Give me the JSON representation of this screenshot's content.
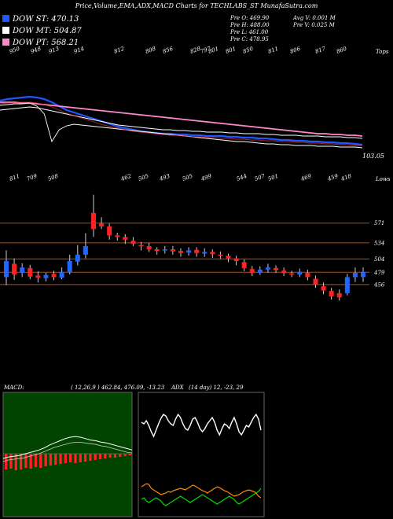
{
  "header": {
    "title": "Price,Volume,EMA,ADX,MACD Charts for TECHLABS_ST MunafaSutra.com"
  },
  "legend": [
    {
      "label": "DOW ST: 470.13",
      "color": "#2255ff"
    },
    {
      "label": "DOW MT: 504.87",
      "color": "#ffffff"
    },
    {
      "label": "DOW PT: 568.21",
      "color": "#ff88cc"
    }
  ],
  "stats": {
    "prev_open": "Pre   O: 469.90",
    "prev_high": "Pre   H: 488.00",
    "prev_low": "Pre   L: 461.00",
    "prev_close": "Pre   C: 478.95",
    "avg_volume": "Avg V: 0.001 M",
    "prev_volume": "Pre   V: 0.025 M"
  },
  "upper_panel": {
    "top_labels": [
      "Tops",
      "950",
      "948",
      "913",
      "914",
      "812",
      "808",
      "856",
      "828",
      "797",
      "801",
      "801",
      "850",
      "811",
      "806",
      "817",
      "860"
    ],
    "bottom_labels": [
      "Lows",
      "811",
      "709",
      "508",
      "462",
      "505",
      "493",
      "505",
      "499",
      "544",
      "507",
      "501",
      "469",
      "459",
      "418"
    ],
    "last_value": "103.05"
  },
  "price_panel": {
    "levels": [
      "571",
      "534",
      "504",
      "479",
      "456"
    ]
  },
  "indicators": {
    "macd_label": "MACD:",
    "macd_values": "( 12,26,9 ) 462.84, 476.09, -13.23",
    "adx_label": "ADX",
    "adx_values": "(14  day) 12, -23, 29"
  },
  "chart_data": [
    {
      "type": "line",
      "panel": "ema",
      "x": [
        1,
        2,
        3,
        4,
        5,
        6,
        7,
        8,
        9,
        10,
        11,
        12,
        13,
        14,
        15,
        16,
        17,
        18,
        19,
        20,
        21,
        22,
        23,
        24,
        25,
        26,
        27,
        28,
        29,
        30,
        31,
        32,
        33,
        34,
        35,
        36,
        37,
        38,
        39,
        40,
        41,
        42,
        43,
        44,
        45,
        46,
        47,
        48,
        49,
        50
      ],
      "series": [
        {
          "name": "",
          "color": "#2255ff",
          "values": [
            128,
            126,
            125,
            124,
            123,
            124,
            126,
            130,
            135,
            140,
            143,
            146,
            149,
            152,
            155,
            158,
            161,
            163,
            165,
            167,
            168,
            169,
            170,
            170,
            171,
            171,
            172,
            172,
            173,
            173,
            173,
            174,
            174,
            175,
            175,
            176,
            176,
            177,
            178,
            178,
            179,
            179,
            180,
            180,
            181,
            181,
            182,
            182,
            183,
            184
          ]
        },
        {
          "name": "",
          "color": "#ffffff",
          "values": [
            140,
            139,
            138,
            137,
            136,
            137,
            139,
            141,
            143,
            145,
            147,
            149,
            151,
            153,
            155,
            157,
            159,
            160,
            161,
            162,
            163,
            164,
            165,
            165,
            166,
            166,
            167,
            167,
            168,
            168,
            168,
            169,
            169,
            170,
            170,
            170,
            171,
            171,
            172,
            172,
            172,
            173,
            173,
            173,
            174,
            174,
            174,
            175,
            175,
            176
          ]
        },
        {
          "name": "",
          "color": "#ff88cc",
          "values": [
            130,
            130,
            130,
            131,
            131,
            132,
            133,
            134,
            135,
            136,
            137,
            138,
            139,
            140,
            141,
            142,
            143,
            144,
            145,
            146,
            147,
            148,
            149,
            150,
            151,
            152,
            153,
            154,
            155,
            156,
            157,
            158,
            159,
            160,
            161,
            162,
            163,
            164,
            165,
            166,
            167,
            168,
            169,
            170,
            170,
            171,
            171,
            172,
            172,
            173
          ]
        },
        {
          "name": "",
          "color": "#ffffff",
          "values": [
            134,
            133,
            132,
            132,
            131,
            135,
            145,
            180,
            165,
            160,
            158,
            159,
            160,
            161,
            162,
            163,
            164,
            165,
            166,
            167,
            168,
            169,
            170,
            171,
            172,
            173,
            174,
            175,
            176,
            177,
            178,
            179,
            180,
            180,
            181,
            182,
            183,
            183,
            184,
            184,
            185,
            185,
            185,
            186,
            186,
            186,
            187,
            187,
            187,
            188
          ]
        },
        {
          "name": "",
          "color": "#ff3333",
          "values": [
            132,
            131,
            131,
            130,
            130,
            131,
            133,
            136,
            140,
            144,
            147,
            150,
            153,
            156,
            159,
            161,
            163,
            165,
            167,
            168,
            169,
            170,
            171,
            172,
            172,
            173,
            174,
            174,
            175,
            175,
            176,
            176,
            177,
            177,
            178,
            178,
            179,
            179,
            180,
            180,
            181,
            181,
            182,
            182,
            183,
            183,
            184,
            184,
            185,
            185
          ]
        }
      ]
    },
    {
      "type": "bar",
      "panel": "candles",
      "candles": [
        [
          470,
          500,
          520,
          455,
          "up"
        ],
        [
          495,
          475,
          505,
          465,
          "down"
        ],
        [
          478,
          488,
          496,
          470,
          "up"
        ],
        [
          487,
          471,
          493,
          466,
          "down"
        ],
        [
          473,
          469,
          481,
          460,
          "down"
        ],
        [
          468,
          474,
          478,
          462,
          "up"
        ],
        [
          476,
          470,
          482,
          464,
          "down"
        ],
        [
          469,
          480,
          488,
          466,
          "up"
        ],
        [
          479,
          500,
          512,
          475,
          "up"
        ],
        [
          499,
          512,
          530,
          492,
          "up"
        ],
        [
          512,
          528,
          552,
          505,
          "up"
        ],
        [
          560,
          590,
          624,
          545,
          "down"
        ],
        [
          565,
          570,
          582,
          560,
          "down"
        ],
        [
          565,
          548,
          570,
          540,
          "down"
        ],
        [
          548,
          545,
          553,
          538,
          "down"
        ],
        [
          545,
          540,
          550,
          532,
          "down"
        ],
        [
          538,
          532,
          545,
          528,
          "down"
        ],
        [
          530,
          528,
          536,
          520,
          "down"
        ],
        [
          528,
          522,
          534,
          517,
          "down"
        ],
        [
          522,
          519,
          526,
          512,
          "down"
        ],
        [
          520,
          522,
          528,
          514,
          "up"
        ],
        [
          522,
          518,
          528,
          512,
          "down"
        ],
        [
          519,
          515,
          524,
          508,
          "down"
        ],
        [
          516,
          520,
          526,
          510,
          "up"
        ],
        [
          521,
          515,
          526,
          508,
          "down"
        ],
        [
          514,
          517,
          524,
          508,
          "up"
        ],
        [
          517,
          513,
          522,
          506,
          "down"
        ],
        [
          512,
          510,
          518,
          504,
          "down"
        ],
        [
          510,
          505,
          514,
          498,
          "down"
        ],
        [
          505,
          500,
          510,
          492,
          "down"
        ],
        [
          498,
          487,
          503,
          481,
          "down"
        ],
        [
          485,
          478,
          491,
          472,
          "down"
        ],
        [
          478,
          484,
          490,
          474,
          "up"
        ],
        [
          484,
          488,
          495,
          478,
          "up"
        ],
        [
          487,
          483,
          492,
          478,
          "down"
        ],
        [
          482,
          478,
          488,
          472,
          "down"
        ],
        [
          477,
          475,
          482,
          470,
          "down"
        ],
        [
          475,
          480,
          486,
          470,
          "up"
        ],
        [
          478,
          470,
          484,
          464,
          "down"
        ],
        [
          467,
          456,
          473,
          450,
          "down"
        ],
        [
          453,
          445,
          460,
          438,
          "down"
        ],
        [
          444,
          434,
          450,
          428,
          "down"
        ],
        [
          432,
          440,
          447,
          426,
          "down"
        ],
        [
          440,
          470,
          476,
          436,
          "up"
        ],
        [
          470,
          478,
          488,
          461,
          "up"
        ],
        [
          470,
          480,
          488,
          461,
          "up"
        ]
      ],
      "ylim": [
        400,
        650
      ]
    },
    {
      "type": "bar",
      "panel": "macd",
      "values": [
        20,
        19,
        21,
        20,
        18,
        19,
        17,
        18,
        16,
        15,
        14,
        13,
        12,
        11,
        12,
        11,
        10,
        9,
        8,
        7,
        6,
        5,
        5,
        4,
        3,
        2
      ],
      "line_a": [
        60,
        62,
        63,
        64,
        66,
        68,
        70,
        72,
        75,
        79,
        82,
        85,
        88,
        90,
        91,
        90,
        88,
        86,
        85,
        83,
        82,
        80,
        78,
        76,
        74,
        72
      ],
      "line_b": [
        58,
        60,
        61,
        62,
        63,
        65,
        67,
        69,
        72,
        75,
        78,
        80,
        82,
        84,
        85,
        85,
        84,
        83,
        82,
        80,
        79,
        77,
        75,
        73,
        71,
        70
      ],
      "ylim": [
        0,
        160
      ]
    },
    {
      "type": "line",
      "panel": "adx",
      "x": [
        1,
        2,
        3,
        4,
        5,
        6,
        7,
        8,
        9,
        10,
        11,
        12,
        13,
        14,
        15,
        16,
        17,
        18,
        19,
        20,
        21,
        22,
        23,
        24,
        25,
        26,
        27,
        28,
        29,
        30,
        31,
        32,
        33,
        34,
        35,
        36,
        37,
        38,
        39,
        40,
        41,
        42,
        43,
        44,
        45,
        46,
        47,
        48,
        49,
        50
      ],
      "series": [
        {
          "name": "",
          "color": "#ffffff",
          "values": [
            120,
            118,
            122,
            116,
            108,
            102,
            110,
            118,
            125,
            130,
            128,
            122,
            118,
            116,
            124,
            130,
            126,
            118,
            112,
            110,
            116,
            124,
            126,
            120,
            112,
            108,
            112,
            118,
            122,
            126,
            120,
            110,
            104,
            112,
            118,
            116,
            112,
            120,
            126,
            118,
            108,
            104,
            110,
            116,
            114,
            120,
            126,
            130,
            124,
            110
          ]
        },
        {
          "name": "",
          "color": "#ff8800",
          "values": [
            38,
            40,
            42,
            41,
            36,
            34,
            32,
            30,
            28,
            29,
            30,
            32,
            31,
            33,
            34,
            35,
            36,
            35,
            34,
            36,
            38,
            40,
            39,
            37,
            35,
            33,
            32,
            30,
            32,
            34,
            36,
            38,
            37,
            35,
            33,
            32,
            30,
            28,
            26,
            27,
            28,
            30,
            32,
            33,
            34,
            33,
            32,
            30,
            26,
            24
          ]
        },
        {
          "name": "",
          "color": "#00dd00",
          "values": [
            22,
            24,
            20,
            18,
            20,
            22,
            24,
            22,
            20,
            16,
            14,
            16,
            18,
            20,
            22,
            24,
            26,
            24,
            22,
            20,
            18,
            20,
            22,
            24,
            26,
            28,
            26,
            24,
            22,
            20,
            18,
            16,
            18,
            20,
            22,
            24,
            26,
            24,
            22,
            18,
            16,
            18,
            20,
            22,
            24,
            26,
            28,
            30,
            32,
            36
          ]
        }
      ],
      "ylim": [
        0,
        150
      ]
    }
  ]
}
